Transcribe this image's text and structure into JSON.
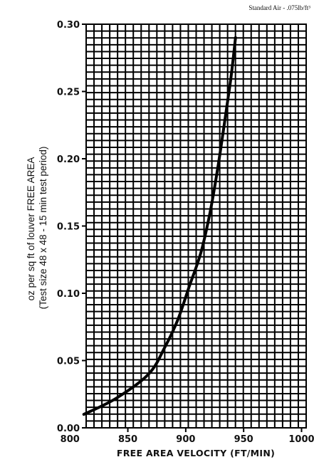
{
  "annotation": "Standard Air - .075lb/ft³",
  "chart_data": {
    "type": "line",
    "title": "",
    "xlabel": "FREE AREA VELOCITY (FT/MIN)",
    "ylabel": [
      "oz per sq ft of louver FREE AREA",
      "(Test size 48 x 48 - 15 min test period)"
    ],
    "xlim": [
      800,
      1000
    ],
    "ylim": [
      0,
      0.3
    ],
    "x_ticks": [
      800,
      850,
      900,
      950,
      1000
    ],
    "y_ticks": [
      "0.00",
      "0.05",
      "0.10",
      "0.15",
      "0.20",
      "0.25",
      "0.30"
    ],
    "grid": true,
    "series": [
      {
        "x": [
          812,
          840,
          868,
          882,
          893,
          903,
          913,
          921,
          928,
          934,
          939,
          943
        ],
        "y": [
          0.01,
          0.022,
          0.04,
          0.06,
          0.08,
          0.105,
          0.13,
          0.16,
          0.195,
          0.23,
          0.26,
          0.29
        ]
      }
    ]
  }
}
